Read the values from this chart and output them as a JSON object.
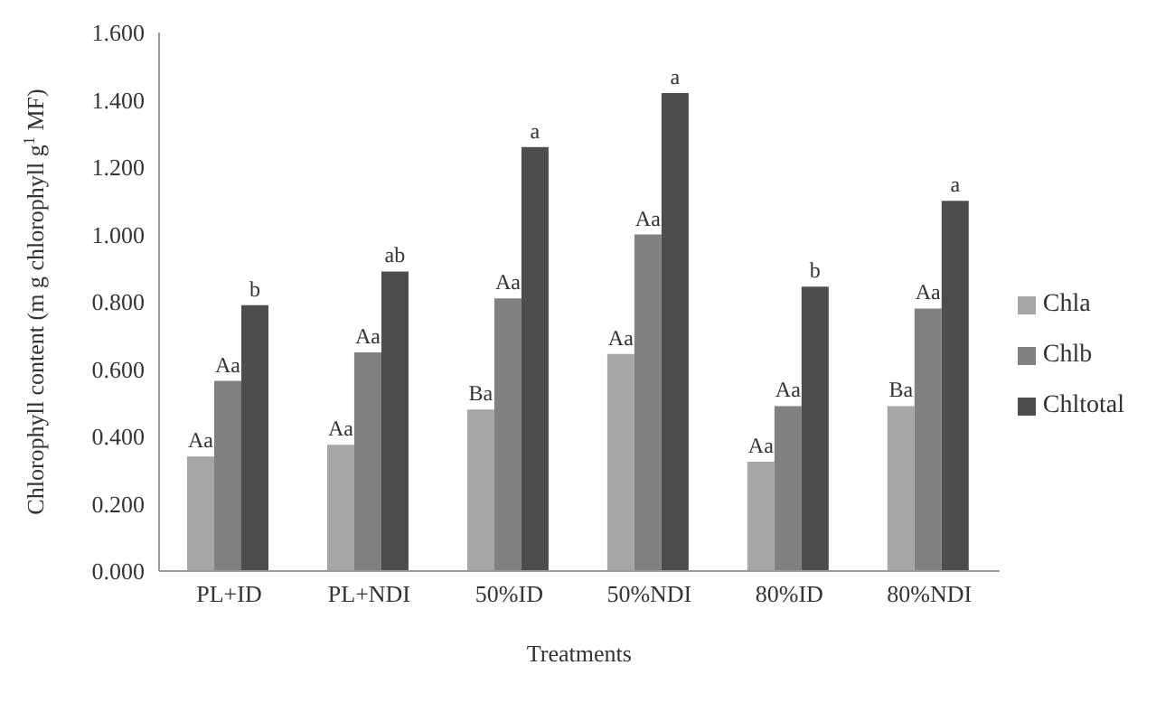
{
  "chart_data": {
    "type": "bar",
    "xlabel": "Treatments",
    "ylabel": "Chlorophyll content (m g chlorophyll g$^{1}$ MF)",
    "categories": [
      "PL+ID",
      "PL+NDI",
      "50%ID",
      "50%NDI",
      "80%ID",
      "80%NDI"
    ],
    "series": [
      {
        "name": "Chla",
        "color": "#a6a6a6",
        "values": [
          0.34,
          0.375,
          0.48,
          0.645,
          0.325,
          0.49
        ],
        "value_labels": [
          "Aa",
          "Aa",
          "Ba",
          "Aa",
          "Aa",
          "Ba"
        ]
      },
      {
        "name": "Chlb",
        "color": "#808080",
        "values": [
          0.565,
          0.65,
          0.81,
          1.0,
          0.49,
          0.78
        ],
        "value_labels": [
          "Aa",
          "Aa",
          "Aa",
          "Aa",
          "Aa",
          "Aa"
        ]
      },
      {
        "name": "Chltotal",
        "color": "#4d4d4d",
        "values": [
          0.79,
          0.89,
          1.26,
          1.42,
          0.845,
          1.1
        ],
        "value_labels": [
          "b",
          "ab",
          "a",
          "a",
          "b",
          "a"
        ]
      }
    ],
    "ylim": [
      0,
      1.6
    ],
    "yticks": [
      {
        "value": 0,
        "label": "0.000"
      },
      {
        "value": 0.2,
        "label": "0.200"
      },
      {
        "value": 0.4,
        "label": "0.400"
      },
      {
        "value": 0.6,
        "label": "0.600"
      },
      {
        "value": 0.8,
        "label": "0.800"
      },
      {
        "value": 1.0,
        "label": "1.000"
      },
      {
        "value": 1.2,
        "label": "1.200"
      },
      {
        "value": 1.4,
        "label": "1.400"
      },
      {
        "value": 1.6,
        "label": "1.600"
      }
    ],
    "grid": false,
    "legend": "right"
  }
}
